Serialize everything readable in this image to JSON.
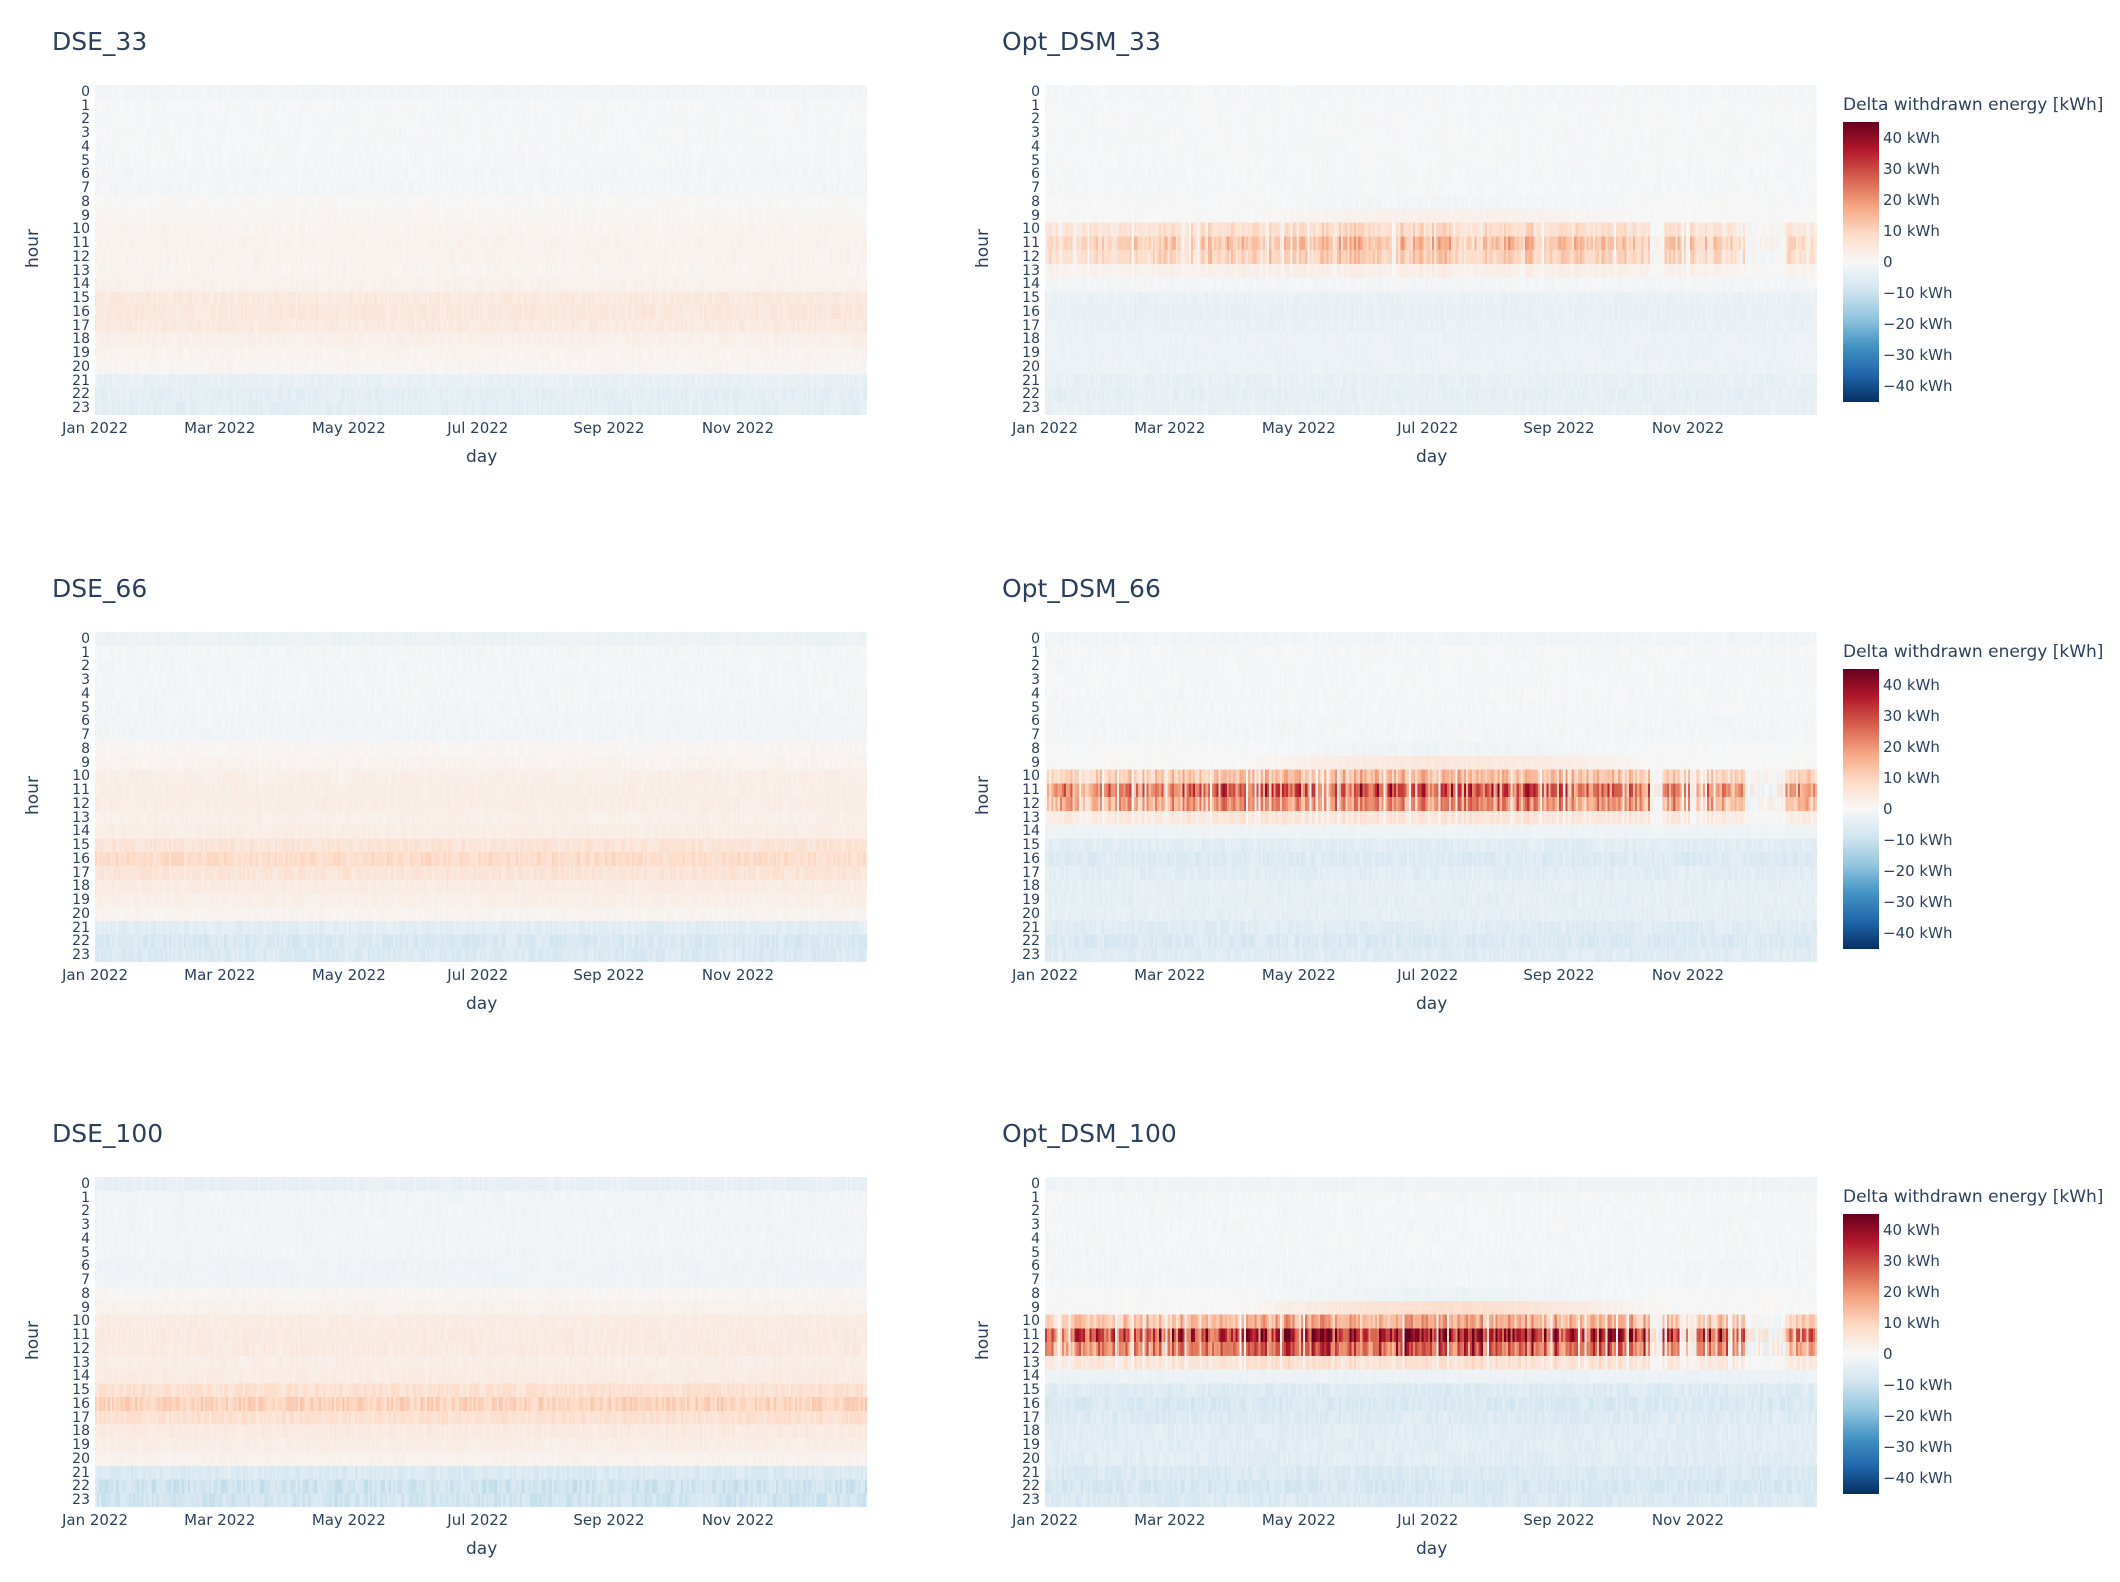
{
  "chart_data": [
    {
      "type": "heatmap",
      "title": "DSE_33",
      "xlabel": "day",
      "ylabel": "hour",
      "x_tick_labels": [
        "Jan 2022",
        "Mar 2022",
        "May 2022",
        "Jul 2022",
        "Sep 2022",
        "Nov 2022"
      ],
      "y_categories": [
        "0",
        "1",
        "2",
        "3",
        "4",
        "5",
        "6",
        "7",
        "8",
        "9",
        "10",
        "11",
        "12",
        "13",
        "14",
        "15",
        "16",
        "17",
        "18",
        "19",
        "20",
        "21",
        "22",
        "23"
      ],
      "hourly_mean_kwh": [
        -1.5,
        -0.5,
        -0.5,
        -0.5,
        -0.5,
        -0.7,
        -1,
        -1,
        0.3,
        0.8,
        1.6,
        1.8,
        1.8,
        1.5,
        2,
        4.5,
        5,
        4.2,
        2.5,
        1.5,
        1,
        -3.5,
        -4.5,
        -4.5
      ],
      "zlim": [
        -45,
        45
      ],
      "colorscale": "RdBu (reversed)",
      "has_colorbar": false
    },
    {
      "type": "heatmap",
      "title": "Opt_DSM_33",
      "xlabel": "day",
      "ylabel": "hour",
      "x_tick_labels": [
        "Jan 2022",
        "Mar 2022",
        "May 2022",
        "Jul 2022",
        "Sep 2022",
        "Nov 2022"
      ],
      "y_categories": [
        "0",
        "1",
        "2",
        "3",
        "4",
        "5",
        "6",
        "7",
        "8",
        "9",
        "10",
        "11",
        "12",
        "13",
        "14",
        "15",
        "16",
        "17",
        "18",
        "19",
        "20",
        "21",
        "22",
        "23"
      ],
      "hourly_mean_kwh": [
        -0.8,
        -0.4,
        -0.4,
        -0.4,
        -0.4,
        -0.4,
        -0.6,
        -0.6,
        -0.5,
        1,
        6,
        10,
        8,
        2,
        -1,
        -3,
        -3.5,
        -3,
        -2.5,
        -2.5,
        -2.5,
        -3.5,
        -4,
        -3.5
      ],
      "zlim": [
        -45,
        45
      ],
      "colorscale": "RdBu (reversed)",
      "has_colorbar": true,
      "colorbar": {
        "title": "Delta withdrawn energy [kWh]",
        "ticks": [
          "40 kWh",
          "30 kWh",
          "20 kWh",
          "10 kWh",
          "0",
          "−10 kWh",
          "−20 kWh",
          "−30 kWh",
          "−40 kWh"
        ]
      }
    },
    {
      "type": "heatmap",
      "title": "DSE_66",
      "xlabel": "day",
      "ylabel": "hour",
      "x_tick_labels": [
        "Jan 2022",
        "Mar 2022",
        "May 2022",
        "Jul 2022",
        "Sep 2022",
        "Nov 2022"
      ],
      "y_categories": [
        "0",
        "1",
        "2",
        "3",
        "4",
        "5",
        "6",
        "7",
        "8",
        "9",
        "10",
        "11",
        "12",
        "13",
        "14",
        "15",
        "16",
        "17",
        "18",
        "19",
        "20",
        "21",
        "22",
        "23"
      ],
      "hourly_mean_kwh": [
        -2.5,
        -1,
        -1,
        -1,
        -1,
        -1.2,
        -1.5,
        -1.5,
        0.8,
        1.5,
        2.8,
        3,
        3,
        2.5,
        3,
        6,
        8,
        6,
        3.5,
        2.5,
        1.5,
        -5,
        -7,
        -6.5
      ],
      "zlim": [
        -45,
        45
      ],
      "colorscale": "RdBu (reversed)",
      "has_colorbar": false
    },
    {
      "type": "heatmap",
      "title": "Opt_DSM_66",
      "xlabel": "day",
      "ylabel": "hour",
      "x_tick_labels": [
        "Jan 2022",
        "Mar 2022",
        "May 2022",
        "Jul 2022",
        "Sep 2022",
        "Nov 2022"
      ],
      "y_categories": [
        "0",
        "1",
        "2",
        "3",
        "4",
        "5",
        "6",
        "7",
        "8",
        "9",
        "10",
        "11",
        "12",
        "13",
        "14",
        "15",
        "16",
        "17",
        "18",
        "19",
        "20",
        "21",
        "22",
        "23"
      ],
      "hourly_mean_kwh": [
        -1.5,
        -0.6,
        -0.6,
        -0.6,
        -0.6,
        -0.7,
        -1,
        -1,
        -0.8,
        2,
        10,
        20,
        15,
        4,
        -2,
        -5,
        -6,
        -5,
        -4,
        -4,
        -4,
        -5.5,
        -6.5,
        -5.5
      ],
      "zlim": [
        -45,
        45
      ],
      "colorscale": "RdBu (reversed)",
      "has_colorbar": true,
      "colorbar": {
        "title": "Delta withdrawn energy [kWh]",
        "ticks": [
          "40 kWh",
          "30 kWh",
          "20 kWh",
          "10 kWh",
          "0",
          "−10 kWh",
          "−20 kWh",
          "−30 kWh",
          "−40 kWh"
        ]
      }
    },
    {
      "type": "heatmap",
      "title": "DSE_100",
      "xlabel": "day",
      "ylabel": "hour",
      "x_tick_labels": [
        "Jan 2022",
        "Mar 2022",
        "May 2022",
        "Jul 2022",
        "Sep 2022",
        "Nov 2022"
      ],
      "y_categories": [
        "0",
        "1",
        "2",
        "3",
        "4",
        "5",
        "6",
        "7",
        "8",
        "9",
        "10",
        "11",
        "12",
        "13",
        "14",
        "15",
        "16",
        "17",
        "18",
        "19",
        "20",
        "21",
        "22",
        "23"
      ],
      "hourly_mean_kwh": [
        -3.5,
        -1.5,
        -1.5,
        -1.5,
        -1.5,
        -1.5,
        -2,
        -2,
        1,
        2,
        3.5,
        4,
        4,
        3,
        3.5,
        7,
        10,
        7,
        4,
        3,
        2,
        -6.5,
        -9,
        -8.5
      ],
      "zlim": [
        -45,
        45
      ],
      "colorscale": "RdBu (reversed)",
      "has_colorbar": false
    },
    {
      "type": "heatmap",
      "title": "Opt_DSM_100",
      "xlabel": "day",
      "ylabel": "hour",
      "x_tick_labels": [
        "Jan 2022",
        "Mar 2022",
        "May 2022",
        "Jul 2022",
        "Sep 2022",
        "Nov 2022"
      ],
      "y_categories": [
        "0",
        "1",
        "2",
        "3",
        "4",
        "5",
        "6",
        "7",
        "8",
        "9",
        "10",
        "11",
        "12",
        "13",
        "14",
        "15",
        "16",
        "17",
        "18",
        "19",
        "20",
        "21",
        "22",
        "23"
      ],
      "hourly_mean_kwh": [
        -2,
        -0.8,
        -0.8,
        -0.8,
        -0.8,
        -0.9,
        -1.2,
        -1.2,
        -1,
        3,
        12,
        27,
        20,
        5,
        -2.5,
        -6,
        -7,
        -6,
        -5,
        -5,
        -5,
        -6.5,
        -7.5,
        -6.5
      ],
      "zlim": [
        -45,
        45
      ],
      "colorscale": "RdBu (reversed)",
      "has_colorbar": true,
      "colorbar": {
        "title": "Delta withdrawn energy [kWh]",
        "ticks": [
          "40 kWh",
          "30 kWh",
          "20 kWh",
          "10 kWh",
          "0",
          "−10 kWh",
          "−20 kWh",
          "−30 kWh",
          "−40 kWh"
        ]
      }
    }
  ],
  "colors": {
    "text": "#2a3f5f",
    "scale": [
      "#053061",
      "#2166ac",
      "#4393c3",
      "#92c5de",
      "#d1e5f0",
      "#f7f7f7",
      "#fddbc7",
      "#f4a582",
      "#d6604d",
      "#b2182b",
      "#67001f"
    ]
  }
}
